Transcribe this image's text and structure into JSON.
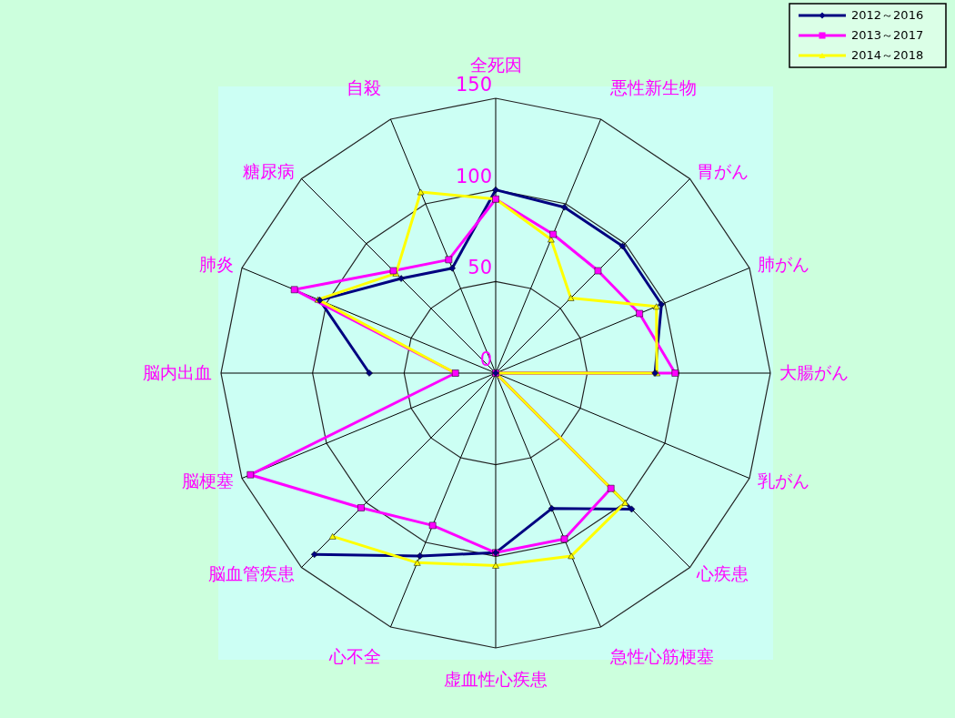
{
  "chart_data": {
    "type": "radar",
    "categories": [
      "全死因",
      "悪性新生物",
      "胃がん",
      "肺がん",
      "大腸がん",
      "乳がん",
      "心疾患",
      "急性心筋梗塞",
      "虚血性心疾患",
      "心不全",
      "脳血管疾患",
      "脳梗塞",
      "脳内出血",
      "肺炎",
      "糖尿病",
      "自殺"
    ],
    "series": [
      {
        "name": "2012～2016",
        "color": "#000080",
        "marker": "diamond",
        "values": [
          100,
          98,
          98,
          98,
          87,
          0,
          105,
          80,
          98,
          108,
          140,
          null,
          69,
          104,
          73,
          62
        ]
      },
      {
        "name": "2013～2017",
        "color": "#ff00ff",
        "marker": "square",
        "values": [
          95,
          82,
          79,
          85,
          98,
          0,
          89,
          98,
          98,
          90,
          104,
          145,
          22,
          119,
          79,
          67
        ]
      },
      {
        "name": "2014～2018",
        "color": "#ffff00",
        "marker": "triangle",
        "values": [
          95,
          79,
          58,
          95,
          88,
          0,
          100,
          108,
          105,
          112,
          126,
          null,
          22,
          105,
          77,
          107
        ]
      }
    ],
    "ylim": [
      0,
      150
    ],
    "yticks": [
      0,
      50,
      100,
      150
    ],
    "grid": true,
    "legend": "top right"
  }
}
